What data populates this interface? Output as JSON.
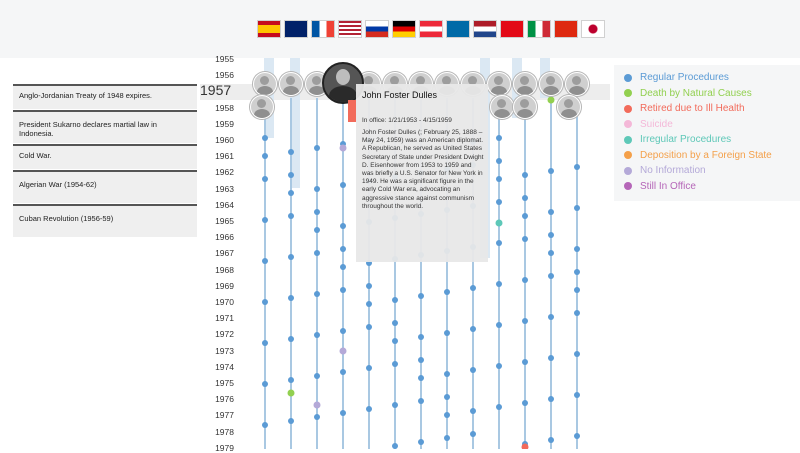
{
  "flags": [
    {
      "icon": "spain-flag",
      "label": "Spain"
    },
    {
      "icon": "uk-flag",
      "label": "United Kingdom"
    },
    {
      "icon": "france-flag",
      "label": "France"
    },
    {
      "icon": "usa-flag",
      "label": "United States"
    },
    {
      "icon": "russia-flag",
      "label": "Russia"
    },
    {
      "icon": "germany-flag",
      "label": "Germany"
    },
    {
      "icon": "austria-flag",
      "label": "Austria"
    },
    {
      "icon": "sweden-flag",
      "label": "Sweden"
    },
    {
      "icon": "netherlands-flag",
      "label": "Netherlands"
    },
    {
      "icon": "turkey-flag",
      "label": "Turkey"
    },
    {
      "icon": "italy-flag",
      "label": "Italy"
    },
    {
      "icon": "china-flag",
      "label": "China"
    },
    {
      "icon": "japan-flag",
      "label": "Japan"
    }
  ],
  "events": [
    "Anglo-Jordanian Treaty of 1948 expires.",
    "President Sukarno declares martial law in Indonesia.",
    "Cold War.",
    "Algerian War (1954-62)",
    "Cuban Revolution (1956-59)"
  ],
  "timeline": {
    "selected_year": "1957",
    "years": [
      "1955",
      "1956",
      "1957",
      "1958",
      "1959",
      "1960",
      "1961",
      "1962",
      "1963",
      "1964",
      "1965",
      "1966",
      "1967",
      "1968",
      "1969",
      "1970",
      "1971",
      "1972",
      "1973",
      "1974",
      "1975",
      "1976",
      "1977",
      "1978",
      "1979"
    ]
  },
  "selected": {
    "name": "John Foster Dulles",
    "office": "In office: 1/21/1953 - 4/15/1959",
    "description": "John Foster Dulles (; February 25, 1888 – May 24, 1959) was an American diplomat. A Republican, he served as United States Secretary of State under President Dwight D. Eisenhower from 1953 to 1959 and was briefly a U.S. Senator for New York in 1949. He was a significant figure in the early Cold War era, advocating an aggressive stance against communism throughout the world."
  },
  "legend": [
    {
      "label": "Regular Procedures",
      "color": "#5b9bd5"
    },
    {
      "label": "Death by Natural Causes",
      "color": "#92d050"
    },
    {
      "label": "Retired due to Ill Health",
      "color": "#f26b5b"
    },
    {
      "label": "Suicide",
      "color": "#f4b8d8"
    },
    {
      "label": "Irregular Procedures",
      "color": "#5ec8b8"
    },
    {
      "label": "Deposition by a Foreign State",
      "color": "#f4a04a"
    },
    {
      "label": "No Information",
      "color": "#b4a9d8"
    },
    {
      "label": "Still In Office",
      "color": "#b566b8"
    }
  ]
}
